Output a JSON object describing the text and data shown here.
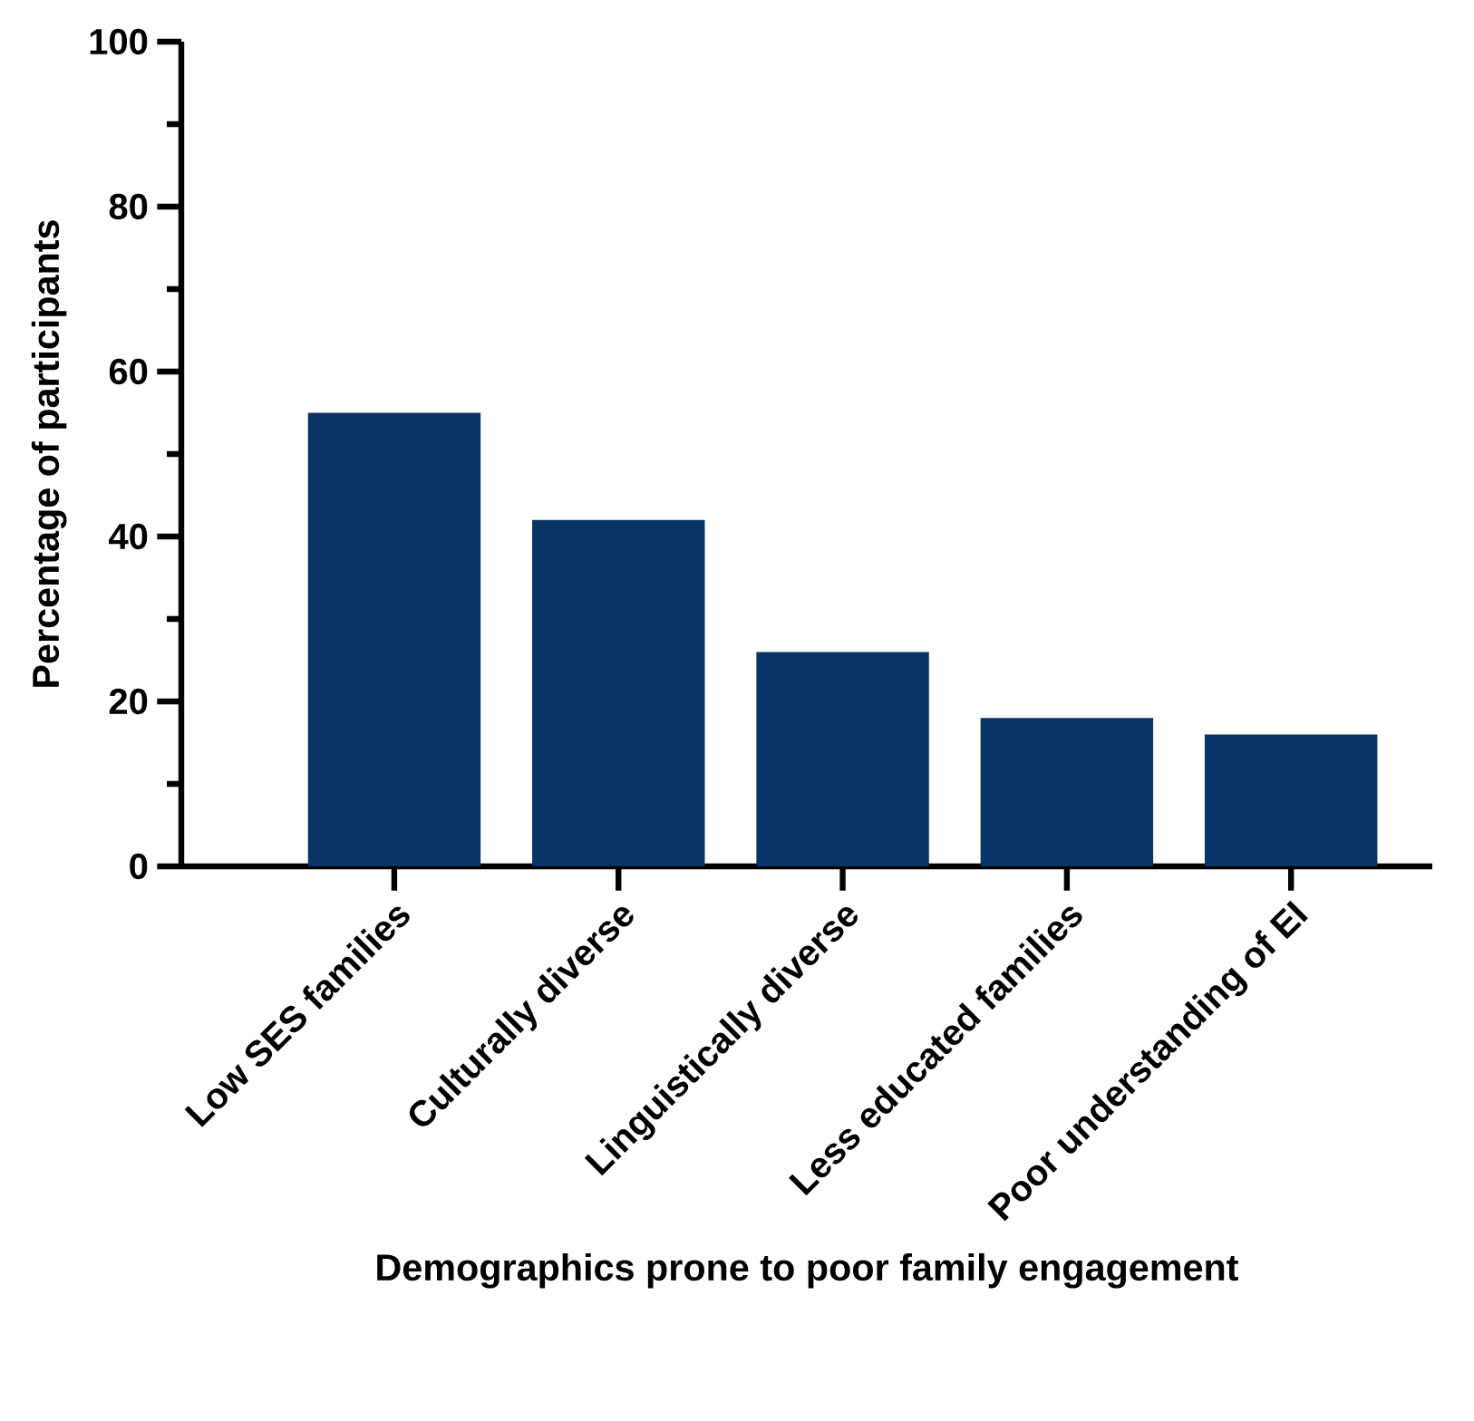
{
  "chart_data": {
    "type": "bar",
    "xlabel": "Demographics prone to poor family engagement",
    "ylabel": "Percentage of participants",
    "categories": [
      "Low SES families",
      "Culturally diverse",
      "Linguistically diverse",
      "Less educated families",
      "Poor understanding of EI"
    ],
    "values": [
      55,
      42,
      26,
      18,
      16
    ],
    "color": "#0b3466",
    "ylim": [
      0,
      100
    ],
    "yticks": [
      0,
      {
        "value": 10,
        "label": null
      },
      20,
      {
        "value": 30,
        "label": null
      },
      40,
      {
        "value": 50,
        "label": null
      },
      60,
      {
        "value": 70,
        "label": null
      },
      80,
      {
        "value": 90,
        "label": null
      },
      100
    ],
    "grid": false
  }
}
